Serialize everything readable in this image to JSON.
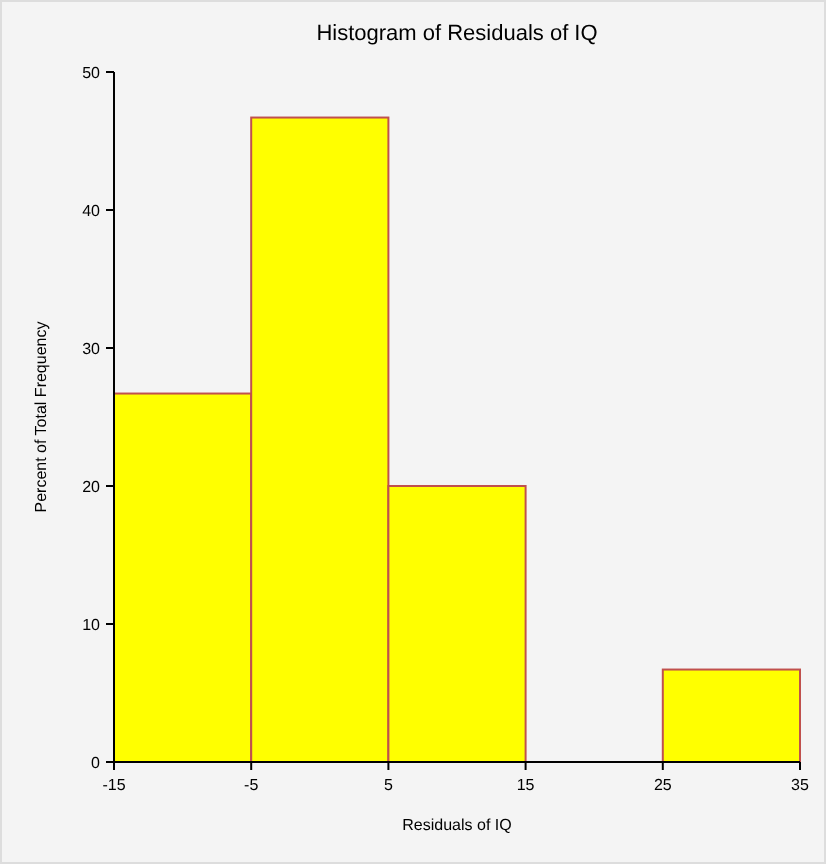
{
  "chart_data": {
    "type": "histogram",
    "title": "Histogram of Residuals of IQ",
    "xlabel": "Residuals of IQ",
    "ylabel": "Percent of Total Frequency",
    "bins": [
      -15,
      -5,
      5,
      15,
      25,
      35
    ],
    "values": [
      26.7,
      46.7,
      20,
      0,
      6.7
    ],
    "color": "#ffff00",
    "xlim": [
      -15,
      35
    ],
    "xticks": [
      -15,
      -5,
      5,
      15,
      25,
      35
    ],
    "ylim": [
      0,
      50
    ],
    "yticks": [
      0,
      10,
      20,
      30,
      40,
      50
    ],
    "grid": false
  }
}
